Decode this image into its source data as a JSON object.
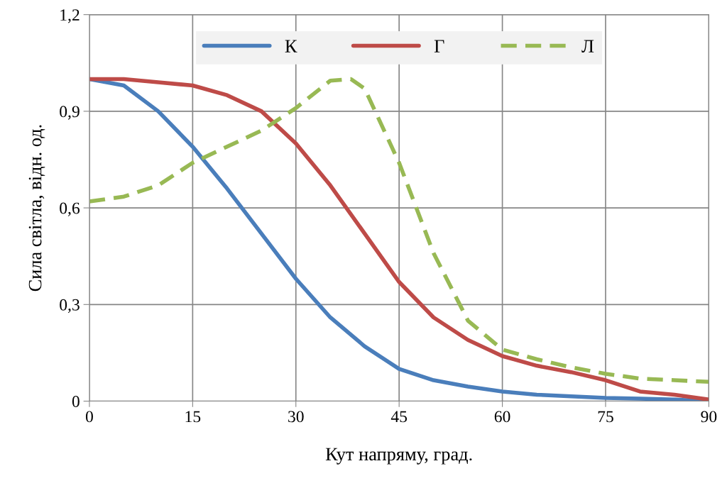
{
  "chart_data": {
    "type": "line",
    "xlabel": "Кут напряму, град.",
    "ylabel": "Сила світла, відн. од.",
    "xlim": [
      0,
      90
    ],
    "xticks": [
      0,
      15,
      30,
      45,
      60,
      75,
      90
    ],
    "ylim": [
      0,
      1.2
    ],
    "yticks": [
      0,
      {
        "value": 0.3,
        "label": "0,3"
      },
      {
        "value": 0.6,
        "label": "0,6"
      },
      {
        "value": 0.9,
        "label": "0,9"
      },
      {
        "value": 1.2,
        "label": "1,2"
      }
    ],
    "grid": true,
    "legend": "top",
    "marker": "none",
    "series": [
      {
        "name": "К",
        "color": "#4a7ebb",
        "line_style": "solid",
        "x": [
          0,
          5,
          10,
          15,
          20,
          25,
          30,
          35,
          40,
          45,
          50,
          55,
          60,
          65,
          70,
          75,
          80,
          85,
          90
        ],
        "values": [
          1.0,
          0.98,
          0.9,
          0.79,
          0.66,
          0.52,
          0.38,
          0.26,
          0.17,
          0.1,
          0.065,
          0.045,
          0.03,
          0.02,
          0.015,
          0.01,
          0.008,
          0.005,
          0
        ]
      },
      {
        "name": "Г",
        "color": "#be4b48",
        "line_style": "solid",
        "x": [
          0,
          5,
          10,
          15,
          20,
          25,
          30,
          35,
          40,
          45,
          50,
          55,
          60,
          65,
          70,
          75,
          80,
          85,
          90
        ],
        "values": [
          1.0,
          1.0,
          0.99,
          0.98,
          0.95,
          0.9,
          0.8,
          0.67,
          0.52,
          0.37,
          0.26,
          0.19,
          0.14,
          0.11,
          0.09,
          0.065,
          0.03,
          0.02,
          0.005
        ]
      },
      {
        "name": "Л",
        "color": "#98b954",
        "line_style": "dashed",
        "x": [
          0,
          5,
          10,
          15,
          20,
          25,
          30,
          35,
          38,
          40,
          45,
          50,
          55,
          60,
          65,
          70,
          75,
          80,
          85,
          90
        ],
        "values": [
          0.62,
          0.635,
          0.67,
          0.74,
          0.79,
          0.84,
          0.91,
          0.995,
          1.0,
          0.97,
          0.74,
          0.46,
          0.25,
          0.16,
          0.13,
          0.105,
          0.085,
          0.07,
          0.065,
          0.06
        ]
      }
    ]
  }
}
